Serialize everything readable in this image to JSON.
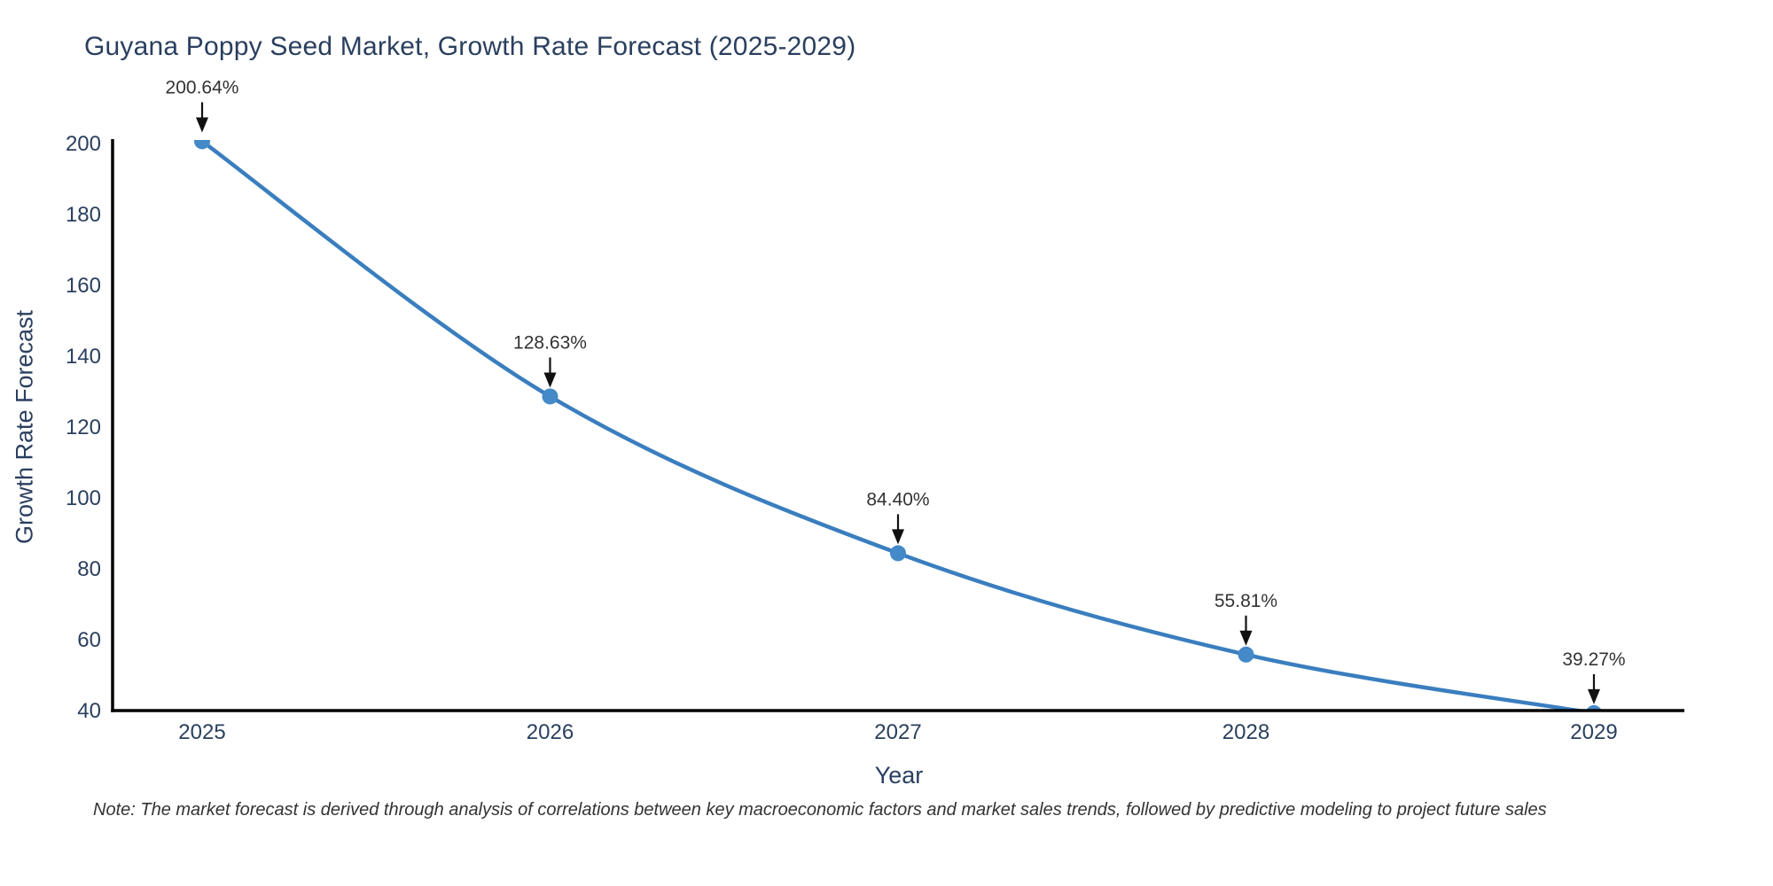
{
  "chart_data": {
    "type": "line",
    "title": "Guyana Poppy Seed Market, Growth Rate Forecast (2025-2029)",
    "xlabel": "Year",
    "ylabel": "Growth Rate Forecast",
    "x": [
      2025,
      2026,
      2027,
      2028,
      2029
    ],
    "values": [
      200.64,
      128.63,
      84.4,
      55.81,
      39.27
    ],
    "point_labels": [
      "200.64%",
      "128.63%",
      "84.40%",
      "55.81%",
      "39.27%"
    ],
    "x_tick_labels": [
      "2025",
      "2026",
      "2027",
      "2028",
      "2029"
    ],
    "y_ticks": [
      40,
      60,
      80,
      100,
      120,
      140,
      160,
      180,
      200
    ],
    "ylim": [
      40,
      201
    ],
    "line_shape": "spline",
    "grid": false,
    "legend_position": "none",
    "colors": {
      "line": "#3a7ebf",
      "marker": "#4489c8",
      "axis": "#000000",
      "tick_label": "#2a3f5f",
      "title": "#2a3f5f",
      "annotation_text": "#333333",
      "arrow": "#111111"
    }
  },
  "note": {
    "text": "Note: The market forecast is derived through analysis of correlations between key macroeconomic factors and market sales trends, followed by predictive modeling to project future sales"
  }
}
